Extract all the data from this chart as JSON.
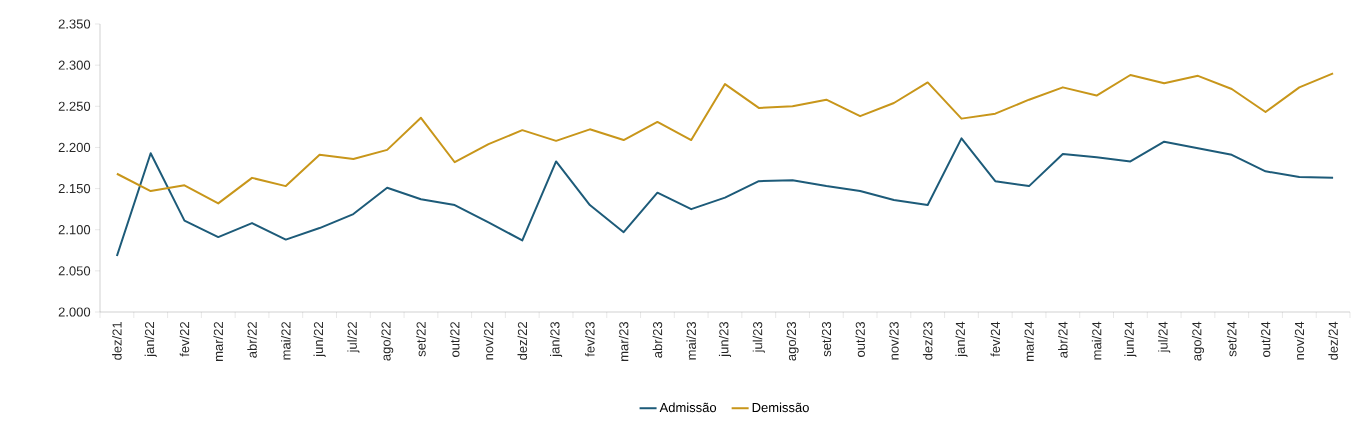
{
  "chart_data": {
    "type": "line",
    "categories": [
      "dez/21",
      "jan/22",
      "fev/22",
      "mar/22",
      "abr/22",
      "mai/22",
      "jun/22",
      "jul/22",
      "ago/22",
      "set/22",
      "out/22",
      "nov/22",
      "dez/22",
      "jan/23",
      "fev/23",
      "mar/23",
      "abr/23",
      "mai/23",
      "jun/23",
      "jul/23",
      "ago/23",
      "set/23",
      "out/23",
      "nov/23",
      "dez/23",
      "jan/24",
      "fev/24",
      "mar/24",
      "abr/24",
      "mai/24",
      "jun/24",
      "jul/24",
      "ago/24",
      "set/24",
      "out/24",
      "nov/24",
      "dez/24"
    ],
    "series": [
      {
        "name": "Admissão",
        "color": "#1d5b79",
        "values": [
          2.068,
          2.193,
          2.111,
          2.091,
          2.108,
          2.088,
          2.102,
          2.119,
          2.151,
          2.137,
          2.13,
          2.109,
          2.087,
          2.183,
          2.13,
          2.097,
          2.145,
          2.125,
          2.139,
          2.159,
          2.16,
          2.153,
          2.147,
          2.136,
          2.13,
          2.211,
          2.159,
          2.153,
          2.192,
          2.188,
          2.183,
          2.207,
          2.199,
          2.191,
          2.171,
          2.164,
          2.163
        ]
      },
      {
        "name": "Demissão",
        "color": "#c8961a",
        "values": [
          2.168,
          2.147,
          2.154,
          2.132,
          2.163,
          2.153,
          2.191,
          2.186,
          2.197,
          2.236,
          2.182,
          2.204,
          2.221,
          2.208,
          2.222,
          2.209,
          2.231,
          2.209,
          2.277,
          2.248,
          2.25,
          2.258,
          2.238,
          2.254,
          2.279,
          2.235,
          2.241,
          2.258,
          2.273,
          2.263,
          2.288,
          2.278,
          2.287,
          2.271,
          2.243,
          2.273,
          2.29
        ]
      }
    ],
    "ylim": [
      2.0,
      2.35
    ],
    "yticks": [
      {
        "value": 2.0,
        "label": "2.000"
      },
      {
        "value": 2.05,
        "label": "2.050"
      },
      {
        "value": 2.1,
        "label": "2.100"
      },
      {
        "value": 2.15,
        "label": "2.150"
      },
      {
        "value": 2.2,
        "label": "2.200"
      },
      {
        "value": 2.25,
        "label": "2.250"
      },
      {
        "value": 2.3,
        "label": "2.300"
      },
      {
        "value": 2.35,
        "label": "2.350"
      }
    ],
    "grid": false,
    "legend": "bottom",
    "marker": "none",
    "line_style": "solid"
  }
}
